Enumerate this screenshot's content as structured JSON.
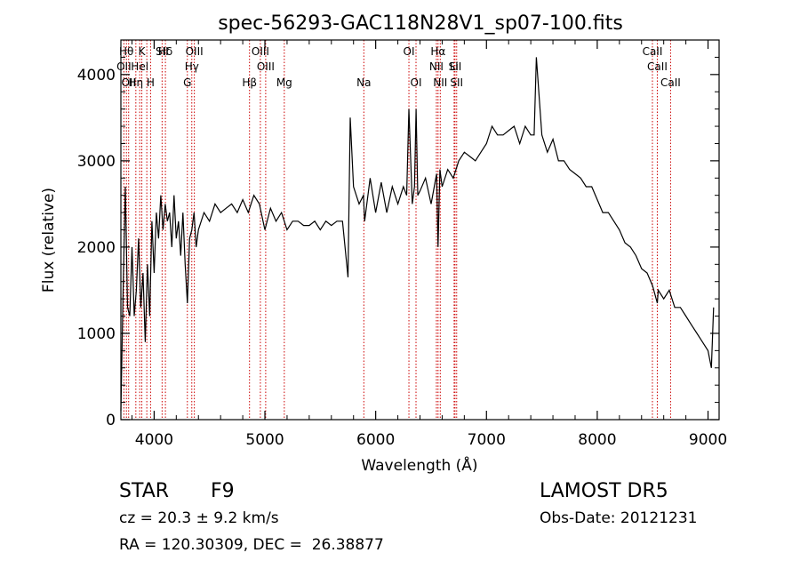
{
  "chart_data": {
    "type": "line",
    "title": "spec-56293-GAC118N28V1_sp07-100.fits",
    "xlabel": "Wavelength (Å)",
    "ylabel": "Flux (relative)",
    "xlim": [
      3700,
      9100
    ],
    "ylim": [
      0,
      4400
    ],
    "x_ticks": [
      {
        "value": 4000,
        "label": "4000"
      },
      {
        "value": 5000,
        "label": "5000"
      },
      {
        "value": 6000,
        "label": "6000"
      },
      {
        "value": 7000,
        "label": "7000"
      },
      {
        "value": 8000,
        "label": "8000"
      },
      {
        "value": 9000,
        "label": "9000"
      }
    ],
    "y_ticks": [
      {
        "value": 0,
        "label": "0"
      },
      {
        "value": 1000,
        "label": "1000"
      },
      {
        "value": 2000,
        "label": "2000"
      },
      {
        "value": 3000,
        "label": "3000"
      },
      {
        "value": 4000,
        "label": "4000"
      }
    ],
    "series": [
      {
        "x": [
          3700,
          3720,
          3740,
          3760,
          3780,
          3800,
          3820,
          3840,
          3860,
          3880,
          3900,
          3920,
          3940,
          3960,
          3980,
          4000,
          4020,
          4040,
          4060,
          4080,
          4100,
          4120,
          4140,
          4160,
          4180,
          4200,
          4220,
          4240,
          4260,
          4280,
          4300,
          4320,
          4340,
          4360,
          4380,
          4400,
          4450,
          4500,
          4550,
          4600,
          4650,
          4700,
          4750,
          4800,
          4850,
          4900,
          4950,
          5000,
          5050,
          5100,
          5150,
          5200,
          5250,
          5300,
          5350,
          5400,
          5450,
          5500,
          5550,
          5600,
          5650,
          5700,
          5750,
          5770,
          5800,
          5850,
          5890,
          5900,
          5950,
          6000,
          6050,
          6100,
          6150,
          6200,
          6250,
          6280,
          6300,
          6330,
          6350,
          6365,
          6380,
          6400,
          6450,
          6500,
          6550,
          6563,
          6580,
          6600,
          6650,
          6700,
          6750,
          6800,
          6850,
          6900,
          6950,
          7000,
          7050,
          7100,
          7150,
          7200,
          7250,
          7300,
          7350,
          7400,
          7430,
          7450,
          7500,
          7550,
          7600,
          7650,
          7700,
          7750,
          7800,
          7850,
          7900,
          7950,
          8000,
          8050,
          8100,
          8150,
          8200,
          8250,
          8300,
          8350,
          8400,
          8450,
          8500,
          8542,
          8550,
          8600,
          8650,
          8700,
          8750,
          8800,
          8850,
          8900,
          8950,
          9000,
          9030,
          9050
        ],
        "y": [
          100,
          1500,
          2700,
          1300,
          1200,
          2000,
          1200,
          1500,
          2100,
          1300,
          1700,
          900,
          1800,
          1200,
          2300,
          1700,
          2400,
          2100,
          2600,
          2200,
          2500,
          2300,
          2400,
          2000,
          2600,
          2100,
          2300,
          1900,
          2400,
          1800,
          1350,
          2100,
          2200,
          2400,
          2000,
          2200,
          2400,
          2300,
          2500,
          2400,
          2450,
          2500,
          2400,
          2550,
          2400,
          2600,
          2500,
          2200,
          2450,
          2300,
          2400,
          2200,
          2300,
          2300,
          2250,
          2250,
          2300,
          2200,
          2300,
          2250,
          2300,
          2300,
          1650,
          3500,
          2700,
          2500,
          2600,
          2300,
          2800,
          2400,
          2750,
          2400,
          2700,
          2500,
          2700,
          2600,
          3600,
          2500,
          2700,
          3600,
          2600,
          2650,
          2800,
          2500,
          2850,
          2000,
          2900,
          2700,
          2900,
          2800,
          3000,
          3100,
          3050,
          3000,
          3100,
          3200,
          3400,
          3300,
          3300,
          3350,
          3400,
          3200,
          3400,
          3300,
          3300,
          4200,
          3300,
          3100,
          3250,
          3000,
          3000,
          2900,
          2850,
          2800,
          2700,
          2700,
          2550,
          2400,
          2400,
          2300,
          2200,
          2050,
          2000,
          1900,
          1750,
          1700,
          1550,
          1350,
          1500,
          1400,
          1500,
          1300,
          1300,
          1200,
          1100,
          1000,
          900,
          800,
          600,
          1300
        ]
      }
    ],
    "lines": [
      {
        "wavelength": 3727,
        "label": "OII"
      },
      {
        "wavelength": 3750,
        "label": "Hθ"
      },
      {
        "wavelength": 3770,
        "label": "OII"
      },
      {
        "wavelength": 3835,
        "label": "Hη"
      },
      {
        "wavelength": 3870,
        "label": "Hel"
      },
      {
        "wavelength": 3889,
        "label": "K"
      },
      {
        "wavelength": 3934,
        "label": "K"
      },
      {
        "wavelength": 3968,
        "label": "H"
      },
      {
        "wavelength": 4072,
        "label": "SII"
      },
      {
        "wavelength": 4102,
        "label": "Hδ"
      },
      {
        "wavelength": 4300,
        "label": "G"
      },
      {
        "wavelength": 4340,
        "label": "Hγ"
      },
      {
        "wavelength": 4363,
        "label": "OIII"
      },
      {
        "wavelength": 4861,
        "label": "Hβ"
      },
      {
        "wavelength": 4959,
        "label": "OIII"
      },
      {
        "wavelength": 5007,
        "label": "OIII"
      },
      {
        "wavelength": 5175,
        "label": "Mg"
      },
      {
        "wavelength": 5893,
        "label": "Na"
      },
      {
        "wavelength": 6300,
        "label": "OI"
      },
      {
        "wavelength": 6364,
        "label": "OI"
      },
      {
        "wavelength": 6548,
        "label": "NII"
      },
      {
        "wavelength": 6563,
        "label": "Hα"
      },
      {
        "wavelength": 6583,
        "label": "NII"
      },
      {
        "wavelength": 6708,
        "label": "Li"
      },
      {
        "wavelength": 6716,
        "label": "SII"
      },
      {
        "wavelength": 6731,
        "label": "SII"
      },
      {
        "wavelength": 8498,
        "label": "CaII"
      },
      {
        "wavelength": 8542,
        "label": "CaII"
      },
      {
        "wavelength": 8662,
        "label": "CaII"
      }
    ],
    "line_label_rows": [
      [
        "Hθ",
        "K",
        "Hδ",
        "OIII",
        "OIII",
        "OI",
        "Hα",
        "SII",
        "CaII"
      ],
      [
        "OII",
        "Hel",
        "SII",
        "Hγ",
        "OIII",
        "NII",
        "Li",
        "CaII"
      ],
      [
        "OII",
        "Hη",
        "H",
        "G",
        "Hβ",
        "Mg",
        "Na",
        "OI",
        "NII",
        "SII",
        "CaII"
      ]
    ],
    "grid": false,
    "line_color": "#000000",
    "marker_color": "#cc0000"
  },
  "info": {
    "class_label": "STAR",
    "subclass": "F9",
    "cz": "cz = 20.3 ± 9.2 km/s",
    "coords": "RA = 120.30309, DEC =  26.38877",
    "survey": "LAMOST DR5",
    "obs_date": "Obs-Date: 20121231"
  }
}
